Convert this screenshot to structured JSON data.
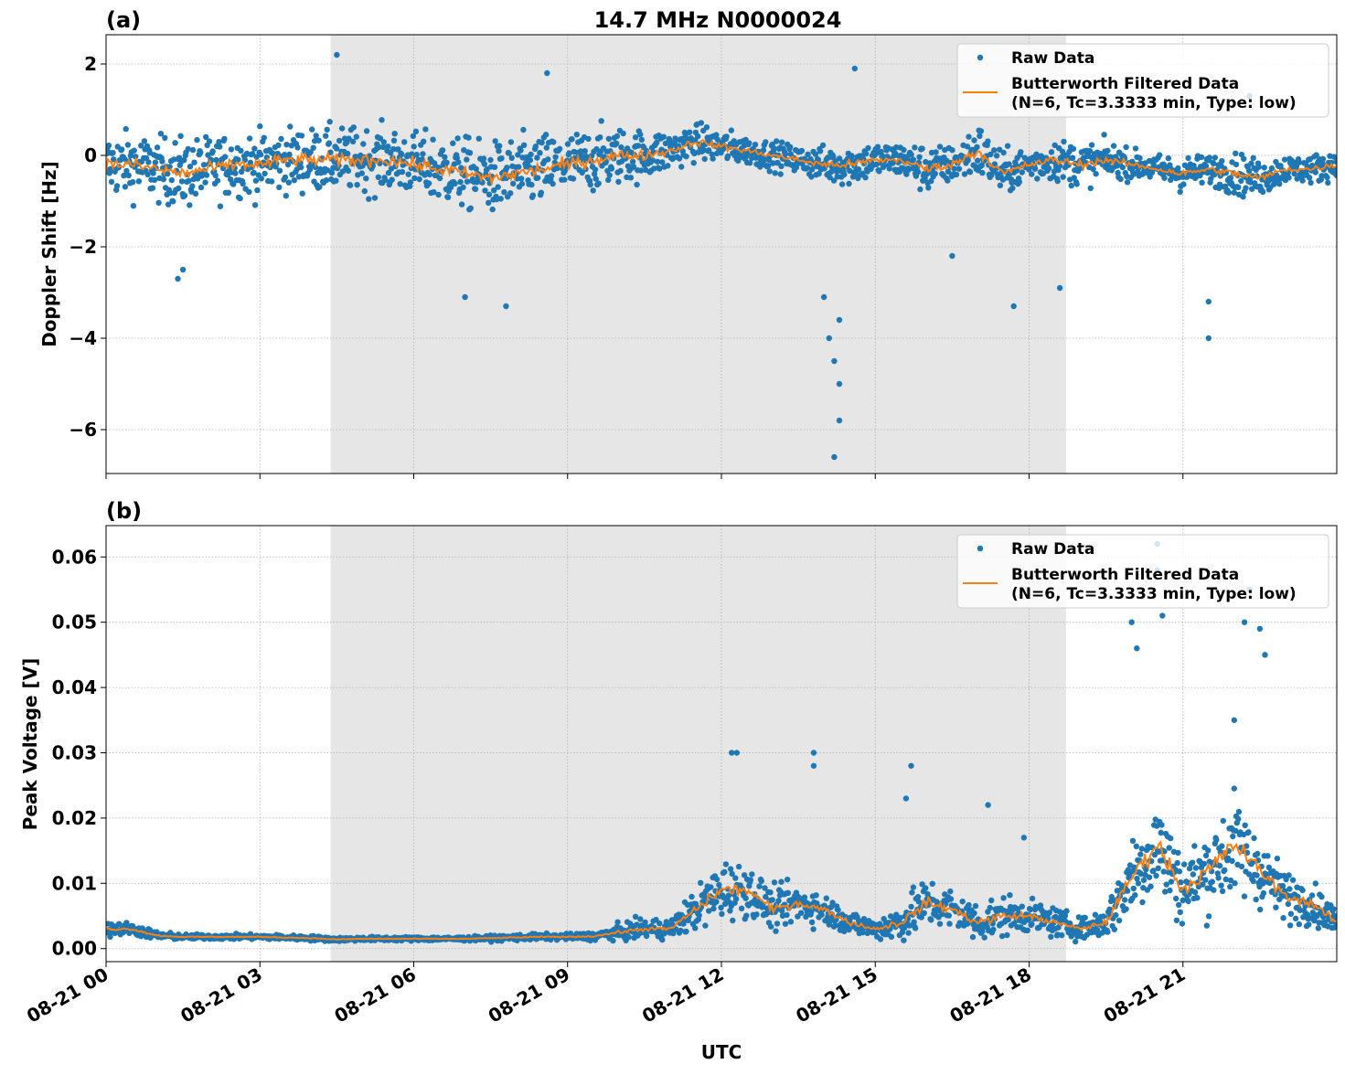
{
  "chart_data": [
    {
      "type": "scatter",
      "panel_label": "(a)",
      "title": "14.7 MHz N0000024",
      "xlabel": "",
      "ylabel": "Doppler Shift [Hz]",
      "xlim_hours": [
        0,
        24
      ],
      "ylim": [
        -6.96,
        2.64
      ],
      "yticks": [
        2,
        0,
        -2,
        -4,
        -6
      ],
      "ytick_labels": [
        "2",
        "0",
        "−2",
        "−4",
        "−6"
      ],
      "grid": true,
      "shaded_interval_hours": [
        4.38,
        18.72
      ],
      "legend": {
        "placement": "top-right",
        "entries": [
          "Raw Data",
          "Butterworth Filtered Data",
          "(N=6, Tc=3.3333 min, Type: low)"
        ]
      },
      "x_hours": [
        0,
        0.5,
        1,
        1.5,
        2,
        2.5,
        3,
        3.5,
        4,
        4.5,
        5,
        5.5,
        6,
        6.5,
        7,
        7.5,
        8,
        8.5,
        9,
        9.5,
        10,
        10.5,
        11,
        11.5,
        12,
        12.5,
        13,
        13.5,
        14,
        14.5,
        15,
        15.5,
        16,
        16.5,
        17,
        17.5,
        18,
        18.5,
        19,
        19.5,
        20,
        20.5,
        21,
        21.5,
        22,
        22.5,
        23,
        23.5,
        24
      ],
      "series": [
        {
          "name": "Butterworth Filtered Data",
          "color": "#ff7f0e",
          "values": [
            -0.2,
            -0.2,
            -0.3,
            -0.4,
            -0.3,
            -0.2,
            -0.2,
            -0.1,
            -0.1,
            -0.1,
            -0.1,
            -0.1,
            -0.2,
            -0.3,
            -0.4,
            -0.5,
            -0.4,
            -0.3,
            -0.2,
            -0.1,
            0.0,
            0.0,
            0.1,
            0.3,
            0.2,
            0.1,
            0.0,
            -0.1,
            -0.2,
            -0.2,
            -0.1,
            -0.1,
            -0.3,
            -0.2,
            0.1,
            -0.4,
            -0.2,
            -0.1,
            -0.2,
            -0.1,
            -0.2,
            -0.3,
            -0.4,
            -0.3,
            -0.4,
            -0.5,
            -0.3,
            -0.3,
            -0.2
          ]
        },
        {
          "name": "Raw Data",
          "color": "#1f77b4",
          "spread": [
            0.9,
            0.9,
            0.9,
            1.0,
            0.9,
            0.9,
            0.9,
            0.9,
            0.9,
            0.9,
            0.9,
            0.9,
            0.9,
            1.0,
            1.0,
            1.0,
            1.0,
            1.0,
            0.9,
            0.9,
            0.8,
            0.7,
            0.6,
            0.5,
            0.5,
            0.4,
            0.4,
            0.4,
            0.5,
            0.6,
            0.5,
            0.5,
            0.7,
            0.5,
            0.8,
            0.6,
            0.5,
            0.6,
            0.6,
            0.5,
            0.4,
            0.4,
            0.5,
            0.4,
            0.6,
            0.5,
            0.4,
            0.4,
            0.4
          ],
          "outliers": [
            [
              1.4,
              -2.7
            ],
            [
              1.5,
              -2.5
            ],
            [
              4.5,
              2.2
            ],
            [
              7,
              -3.1
            ],
            [
              7.8,
              -3.3
            ],
            [
              8.6,
              1.8
            ],
            [
              14.2,
              -6.6
            ],
            [
              14.3,
              -5.8
            ],
            [
              14.3,
              -5.0
            ],
            [
              14.2,
              -4.5
            ],
            [
              14.1,
              -4.0
            ],
            [
              14.0,
              -3.1
            ],
            [
              14.3,
              -3.6
            ],
            [
              14.6,
              1.9
            ],
            [
              16.5,
              -2.2
            ],
            [
              17.7,
              -3.3
            ],
            [
              18.6,
              -2.9
            ],
            [
              21.5,
              -4.0
            ],
            [
              21.5,
              -3.2
            ],
            [
              22.3,
              1.3
            ]
          ]
        }
      ]
    },
    {
      "type": "scatter",
      "panel_label": "(b)",
      "xlabel": "UTC",
      "ylabel": "Peak Voltage [V]",
      "xlim_hours": [
        0,
        24
      ],
      "ylim": [
        -0.002,
        0.0648
      ],
      "yticks": [
        0.0,
        0.01,
        0.02,
        0.03,
        0.04,
        0.05,
        0.06
      ],
      "ytick_labels": [
        "0.00",
        "0.01",
        "0.02",
        "0.03",
        "0.04",
        "0.05",
        "0.06"
      ],
      "xtick_hours": [
        0,
        3,
        6,
        9,
        12,
        15,
        18,
        21
      ],
      "xtick_labels": [
        "08-21 00",
        "08-21 03",
        "08-21 06",
        "08-21 09",
        "08-21 12",
        "08-21 15",
        "08-21 18",
        "08-21 21"
      ],
      "grid": true,
      "shaded_interval_hours": [
        4.38,
        18.72
      ],
      "legend": {
        "placement": "top-right",
        "entries": [
          "Raw Data",
          "Butterworth Filtered Data",
          "(N=6, Tc=3.3333 min, Type: low)"
        ]
      },
      "x_hours": [
        0,
        0.5,
        1,
        1.5,
        2,
        2.5,
        3,
        3.5,
        4,
        4.5,
        5,
        5.5,
        6,
        6.5,
        7,
        7.5,
        8,
        8.5,
        9,
        9.5,
        10,
        10.5,
        11,
        11.5,
        12,
        12.5,
        13,
        13.5,
        14,
        14.5,
        15,
        15.5,
        16,
        16.5,
        17,
        17.5,
        18,
        18.5,
        19,
        19.5,
        20,
        20.5,
        21,
        21.5,
        22,
        22.5,
        23,
        23.5,
        24
      ],
      "series": [
        {
          "name": "Butterworth Filtered Data",
          "color": "#ff7f0e",
          "values": [
            0.003,
            0.003,
            0.002,
            0.0018,
            0.0018,
            0.0018,
            0.0018,
            0.0017,
            0.0016,
            0.0014,
            0.0015,
            0.0015,
            0.0015,
            0.0015,
            0.0015,
            0.0016,
            0.0017,
            0.0018,
            0.0018,
            0.0019,
            0.0025,
            0.003,
            0.003,
            0.006,
            0.009,
            0.009,
            0.006,
            0.007,
            0.006,
            0.004,
            0.003,
            0.004,
            0.007,
            0.006,
            0.004,
            0.005,
            0.005,
            0.004,
            0.003,
            0.004,
            0.011,
            0.016,
            0.009,
            0.012,
            0.016,
            0.012,
            0.008,
            0.007,
            0.004
          ]
        },
        {
          "name": "Raw Data",
          "color": "#1f77b4",
          "spread": [
            0.0015,
            0.0012,
            0.0008,
            0.0005,
            0.0005,
            0.0005,
            0.0005,
            0.0005,
            0.0005,
            0.0004,
            0.0004,
            0.0004,
            0.0004,
            0.0004,
            0.0004,
            0.0005,
            0.0006,
            0.0006,
            0.0006,
            0.0008,
            0.0015,
            0.002,
            0.002,
            0.004,
            0.006,
            0.005,
            0.004,
            0.004,
            0.003,
            0.0025,
            0.002,
            0.004,
            0.005,
            0.004,
            0.004,
            0.004,
            0.003,
            0.003,
            0.002,
            0.003,
            0.008,
            0.01,
            0.007,
            0.008,
            0.01,
            0.007,
            0.005,
            0.004,
            0.003
          ],
          "outliers": [
            [
              12.2,
              0.03
            ],
            [
              12.3,
              0.03
            ],
            [
              13.8,
              0.03
            ],
            [
              13.8,
              0.028
            ],
            [
              15.7,
              0.028
            ],
            [
              15.6,
              0.023
            ],
            [
              17.2,
              0.022
            ],
            [
              17.9,
              0.017
            ],
            [
              20.0,
              0.05
            ],
            [
              20.1,
              0.046
            ],
            [
              20.5,
              0.062
            ],
            [
              20.5,
              0.058
            ],
            [
              20.6,
              0.051
            ],
            [
              22.3,
              0.055
            ],
            [
              22.2,
              0.05
            ],
            [
              22.5,
              0.049
            ],
            [
              22.6,
              0.045
            ],
            [
              22.0,
              0.035
            ]
          ]
        }
      ]
    }
  ]
}
